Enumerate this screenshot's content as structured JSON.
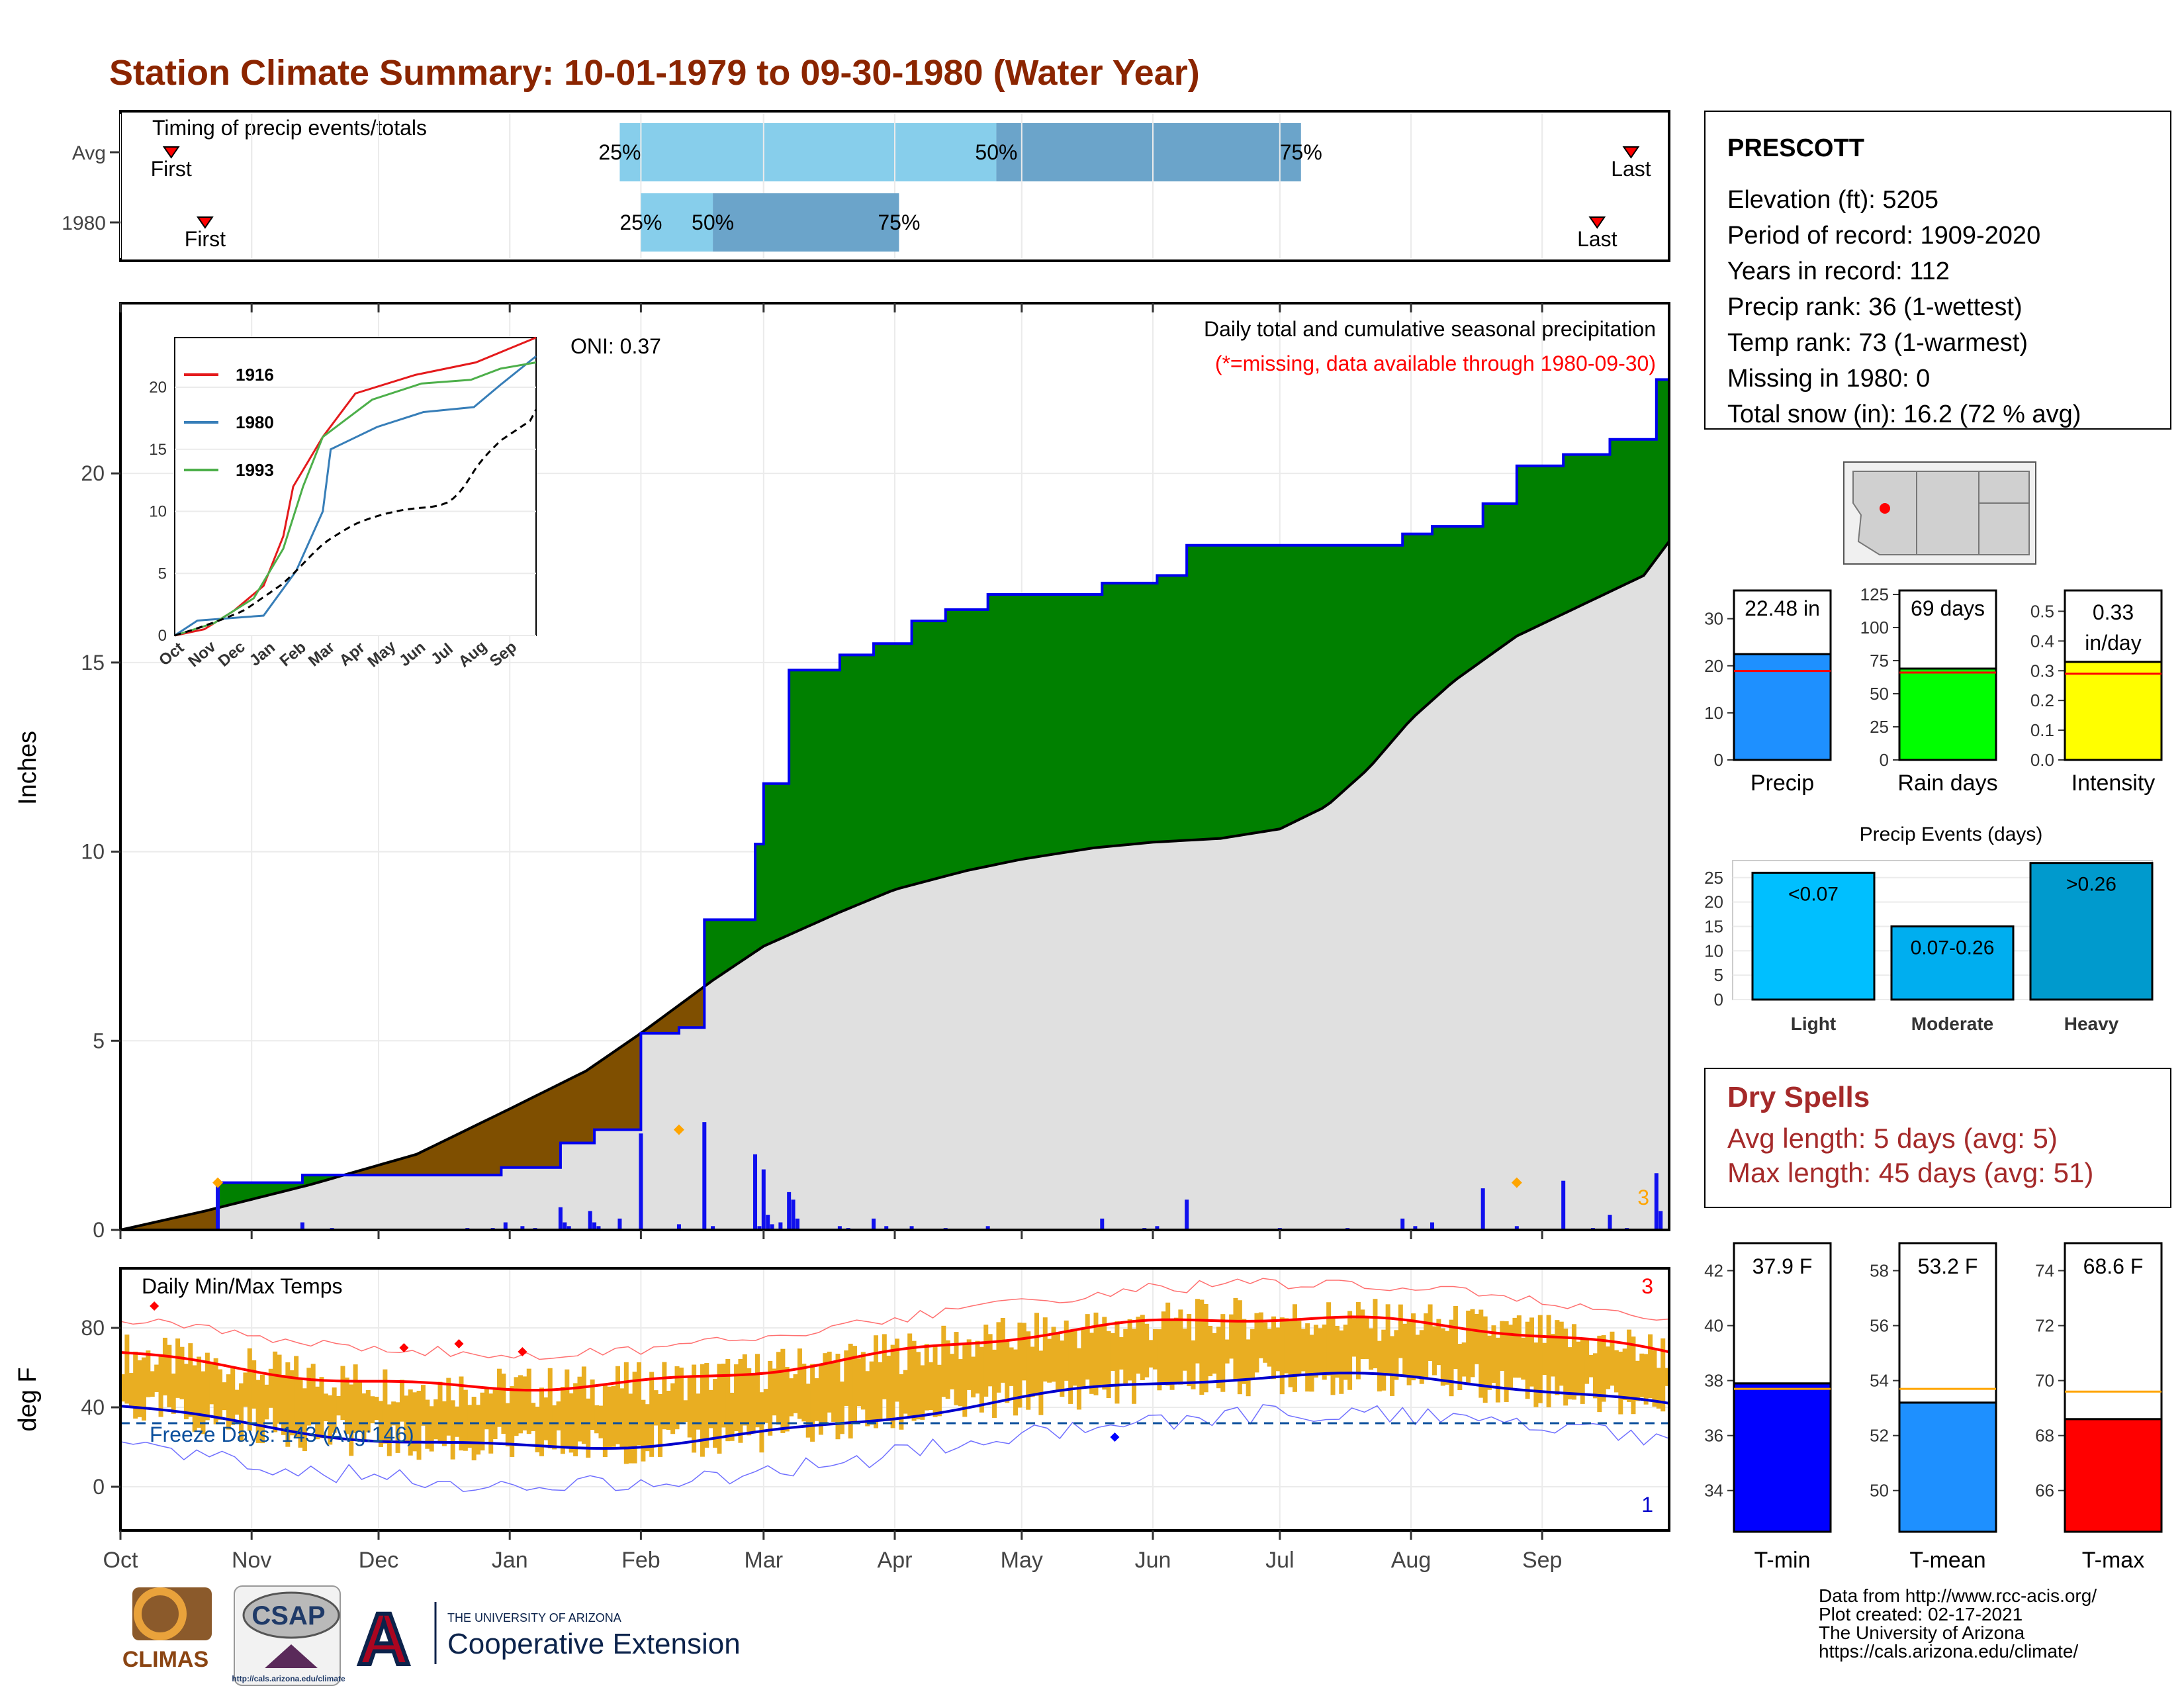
{
  "title": "Station Climate Summary: 10-01-1979 to 09-30-1980 (Water Year)",
  "colors": {
    "title": "#8B2500",
    "cumulative_fill": "#008000",
    "deficit_fill": "#7F4F00",
    "climatology_fill": "#E0E0E0",
    "precip_line": "#0000EE",
    "tmax_line": "#FF0000",
    "tmin_line": "#0000CC",
    "temp_bar": "#E9AE22",
    "q_light": "#87CEEB",
    "q_dark": "#6BA4CA",
    "panel_border": "#000000",
    "avg_marker": "#FFA500"
  },
  "timing": {
    "label": "Timing of precip events/totals",
    "rows": [
      {
        "label": "Avg",
        "first_label": "First",
        "last_label": "Last",
        "first_day": 12,
        "last_day": 357,
        "q25_label": "25%",
        "q50_label": "50%",
        "q75_label": "75%",
        "q25_day": 118,
        "q50_day": 207,
        "q75_day": 279
      },
      {
        "label": "1980",
        "first_label": "First",
        "last_label": "Last",
        "first_day": 20,
        "last_day": 349,
        "q25_label": "25%",
        "q50_label": "50%",
        "q75_label": "75%",
        "q25_day": 123,
        "q50_day": 140,
        "q75_day": 184
      }
    ]
  },
  "station": {
    "name": "PRESCOTT",
    "lines": [
      "Elevation (ft): 5205",
      "Period of record: 1909-2020",
      "Years in record: 112",
      "Precip rank: 36 (1-wettest)",
      "Temp rank: 73 (1-warmest)",
      "Missing in 1980: 0",
      "Total snow (in): 16.2 (72 % avg)"
    ]
  },
  "main_precip": {
    "title": "Daily total and cumulative seasonal precipitation",
    "subtitle": "(*=missing, data available through 1980-09-30)",
    "oni": "ONI: 0.37",
    "ylabel": "Inches",
    "yticks": [
      0,
      5,
      10,
      15,
      20
    ],
    "ylim": [
      0,
      24.5
    ],
    "corner_count": "3"
  },
  "temps": {
    "title": "Daily Min/Max Temps",
    "ylabel": "deg F",
    "yticks": [
      0,
      40,
      80
    ],
    "ylim": [
      -22,
      110
    ],
    "freeze_label": "Freeze Days: 143 (Avg:146)",
    "freeze_line": 32,
    "count_hi": "3",
    "count_lo": "1"
  },
  "months": [
    "Oct",
    "Nov",
    "Dec",
    "Jan",
    "Feb",
    "Mar",
    "Apr",
    "May",
    "Jun",
    "Jul",
    "Aug",
    "Sep"
  ],
  "inset": {
    "legend": [
      "1916",
      "1980",
      "1993"
    ],
    "yticks": [
      0,
      5,
      10,
      15,
      20
    ],
    "months": [
      "Oct",
      "Nov",
      "Dec",
      "Jan",
      "Feb",
      "Mar",
      "Apr",
      "May",
      "Jun",
      "Jul",
      "Aug",
      "Sep"
    ]
  },
  "mini_bars": [
    {
      "label": "Precip",
      "value": 22.48,
      "value_text": "22.48 in",
      "avg": 18.9,
      "ylim": [
        0,
        36
      ],
      "yticks": [
        0,
        10,
        20,
        30
      ],
      "color": "#1E90FF"
    },
    {
      "label": "Rain days",
      "value": 69,
      "value_text": "69 days",
      "avg": 66,
      "ylim": [
        0,
        128
      ],
      "yticks": [
        0,
        25,
        50,
        75,
        100,
        125
      ],
      "color": "#00FF00"
    },
    {
      "label": "Intensity",
      "value": 0.33,
      "value_text": "0.33 in/day",
      "avg": 0.29,
      "ylim": [
        0,
        0.57
      ],
      "yticks": [
        "0.0",
        "0.1",
        "0.2",
        "0.3",
        "0.4",
        "0.5"
      ],
      "color": "#FFFF00"
    }
  ],
  "precip_events": {
    "title": "Precip Events (days)",
    "categories": [
      "Light",
      "Moderate",
      "Heavy"
    ],
    "bin_labels": [
      "<0.07",
      "0.07-0.26",
      ">0.26"
    ],
    "values": [
      26,
      15,
      28
    ],
    "yticks": [
      0,
      5,
      10,
      15,
      20,
      25
    ]
  },
  "dry_spells": {
    "title": "Dry Spells",
    "avg_line": "Avg length: 5 days (avg: 5)",
    "max_line": "Max length: 45 days (avg: 51)"
  },
  "temp_bars": [
    {
      "label": "T-min",
      "value": 37.9,
      "value_text": "37.9 F",
      "avg": 37.7,
      "ylim": [
        32.5,
        43
      ],
      "yticks": [
        34,
        36,
        38,
        40,
        42
      ],
      "color": "#0000FF"
    },
    {
      "label": "T-mean",
      "value": 53.2,
      "value_text": "53.2 F",
      "avg": 53.7,
      "ylim": [
        48.5,
        59
      ],
      "yticks": [
        50,
        52,
        54,
        56,
        58
      ],
      "color": "#1E90FF"
    },
    {
      "label": "T-max",
      "value": 68.6,
      "value_text": "68.6 F",
      "avg": 69.6,
      "ylim": [
        64.5,
        75
      ],
      "yticks": [
        66,
        68,
        70,
        72,
        74
      ],
      "color": "#FF0000"
    }
  ],
  "footer": {
    "credits": [
      "Data from http://www.rcc-acis.org/",
      "Plot created: 02-17-2021",
      "The University of Arizona",
      "https://cals.arizona.edu/climate/"
    ],
    "climas": "CLIMAS",
    "csap": "CSAP",
    "csap_url": "http://cals.arizona.edu/climate",
    "ua_small": "THE UNIVERSITY OF ARIZONA",
    "ua_big": "Cooperative Extension"
  }
}
